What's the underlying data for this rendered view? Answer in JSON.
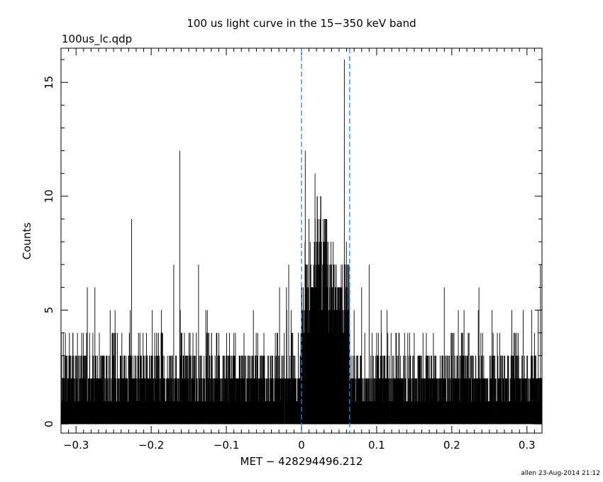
{
  "header": {
    "filename": "100us_lc.qdp",
    "footer": "allen 23-Aug-2014 21:12"
  },
  "chart_data": {
    "type": "bar",
    "title": "100 us light curve in the 15−350 keV band",
    "xlabel": "MET − 428294496.212",
    "ylabel": "Counts",
    "xlim": [
      -0.32,
      0.32
    ],
    "ylim": [
      -0.4,
      16.5
    ],
    "x_ticks": [
      -0.3,
      -0.2,
      -0.1,
      0,
      0.1,
      0.2,
      0.3
    ],
    "x_tick_labels": [
      "−0.3",
      "−0.2",
      "−0.1",
      "0",
      "0.1",
      "0.2",
      "0.3"
    ],
    "y_ticks": [
      0,
      5,
      10,
      15
    ],
    "y_tick_labels": [
      "0",
      "5",
      "10",
      "15"
    ],
    "bin_width": 0.0001,
    "vertical_lines": {
      "x": [
        0.0,
        0.064
      ],
      "style": "dashed",
      "color": "#1a8fd6"
    },
    "background_level": 1,
    "burst_window": [
      0.0,
      0.064
    ],
    "spikes": [
      [
        -0.317,
        4
      ],
      [
        -0.3,
        3
      ],
      [
        -0.285,
        6
      ],
      [
        -0.282,
        4
      ],
      [
        -0.265,
        3
      ],
      [
        -0.252,
        4
      ],
      [
        -0.25,
        3
      ],
      [
        -0.245,
        4
      ],
      [
        -0.228,
        5
      ],
      [
        -0.226,
        9
      ],
      [
        -0.22,
        3
      ],
      [
        -0.215,
        4
      ],
      [
        -0.2,
        3
      ],
      [
        -0.17,
        7
      ],
      [
        -0.162,
        12
      ],
      [
        -0.16,
        4
      ],
      [
        -0.15,
        3
      ],
      [
        -0.137,
        7
      ],
      [
        -0.12,
        3
      ],
      [
        -0.11,
        4
      ],
      [
        -0.09,
        4
      ],
      [
        -0.08,
        3
      ],
      [
        -0.064,
        5
      ],
      [
        -0.05,
        4
      ],
      [
        -0.02,
        6
      ],
      [
        -0.017,
        7
      ],
      [
        -0.01,
        3
      ],
      [
        0.005,
        12
      ],
      [
        0.01,
        9
      ],
      [
        0.018,
        11
      ],
      [
        0.021,
        10
      ],
      [
        0.025,
        9
      ],
      [
        0.03,
        8
      ],
      [
        0.033,
        9
      ],
      [
        0.04,
        7
      ],
      [
        0.045,
        6
      ],
      [
        0.05,
        5
      ],
      [
        0.057,
        16
      ],
      [
        0.06,
        7
      ],
      [
        0.063,
        6
      ],
      [
        0.07,
        5
      ],
      [
        0.08,
        6
      ],
      [
        0.09,
        7
      ],
      [
        0.1,
        4
      ],
      [
        0.11,
        3
      ],
      [
        0.13,
        4
      ],
      [
        0.145,
        3
      ],
      [
        0.15,
        4
      ],
      [
        0.17,
        3
      ],
      [
        0.19,
        6
      ],
      [
        0.2,
        3
      ],
      [
        0.215,
        3
      ],
      [
        0.24,
        3
      ],
      [
        0.255,
        4
      ],
      [
        0.275,
        3
      ],
      [
        0.28,
        4
      ],
      [
        0.295,
        5
      ],
      [
        0.3,
        3
      ],
      [
        0.31,
        4
      ],
      [
        0.315,
        5
      ],
      [
        0.318,
        7
      ]
    ]
  }
}
